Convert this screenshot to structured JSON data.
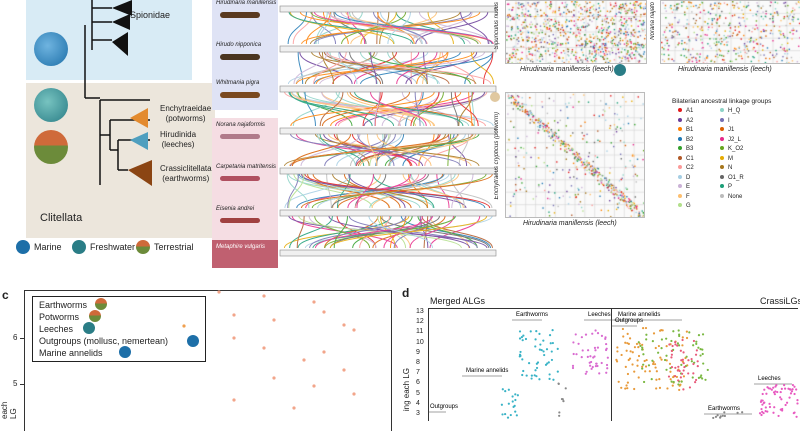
{
  "panel_a": {
    "clade_spionidae": "Spionidae",
    "clade_enchytraeidae": "Enchytraeidae\n(potworms)",
    "clade_hirudinida": "Hirudinida\n(leeches)",
    "clade_crassiclitellata": "Crassiclitellata\n(earthworms)",
    "group_clitellata": "Clitellata",
    "habitat_marine": "Marine",
    "habitat_freshwater": "Freshwater",
    "habitat_terrestrial": "Terrestrial",
    "species": [
      "Hirudinaria manillensis",
      "Hirudo nipponica",
      "Whitmania pigra",
      "Norana najaformis",
      "Carpetania matritensis",
      "Eisenia andrei",
      "Metaphire vulgaris"
    ]
  },
  "panel_b": {
    "plot1_ylabel": "Sipunculus nudus",
    "plot1_xlabel": "Hirudinaria manillensis (leech)",
    "plot2_ylabel": "Norana najafo",
    "plot2_xlabel": "Hirudinaria manillensis (leech)",
    "plot3_ylabel": "Enchytraeus crypticus (potworm)",
    "plot3_xlabel": "Hirudinaria manillensis (leech)",
    "legend_title": "Bilaterian ancestral linkage groups",
    "legend_col1": [
      "A1",
      "A2",
      "B1",
      "B2",
      "B3",
      "C1",
      "C2",
      "D",
      "E",
      "F",
      "G"
    ],
    "legend_col2": [
      "H_Q",
      "I",
      "J1",
      "J2_L",
      "K_O2",
      "M",
      "N",
      "O1_R",
      "P",
      "None"
    ],
    "colors_col1": [
      "#e31a1c",
      "#6a3d9a",
      "#ff7f00",
      "#1f78b4",
      "#33a02c",
      "#b15928",
      "#fb9a99",
      "#a6cee3",
      "#cab2d6",
      "#fdbf6f",
      "#b2df8a"
    ],
    "colors_col2": [
      "#8dd3c7",
      "#7570b3",
      "#d95f02",
      "#e7298a",
      "#66a61e",
      "#e6ab02",
      "#a6761d",
      "#666666",
      "#1b9e77",
      "#bbbbbb"
    ]
  },
  "panel_c": {
    "letter": "c",
    "legend": [
      "Earthworms",
      "Potworms",
      "Leeches",
      "Outgroups (mollusc, nemertean)",
      "Marine annelids"
    ],
    "ylabel": "each LG",
    "yticks": [
      "6",
      "5"
    ]
  },
  "panel_d": {
    "letter": "d",
    "title_left": "Merged ALGs",
    "title_right": "CrassiLGs",
    "ylabel": "ing each LG",
    "yticks": [
      "13",
      "12",
      "11",
      "10",
      "9",
      "8",
      "7",
      "6",
      "5",
      "4",
      "3"
    ],
    "group_labels": [
      "Earthworms",
      "Leeches",
      "Marine annelids",
      "Outgroups",
      "Marine annelids",
      "Outgroups",
      "Leeches",
      "Earthworms"
    ]
  }
}
